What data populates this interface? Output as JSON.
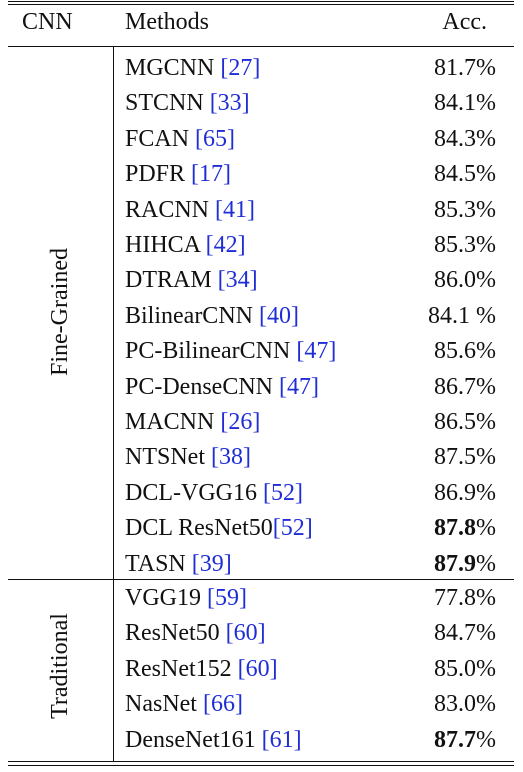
{
  "header": {
    "cnn": "CNN",
    "methods": "Methods",
    "acc": "Acc."
  },
  "groups": [
    {
      "label": "Fine-Grained",
      "rows": [
        {
          "name": "MGCNN ",
          "ref": "[27]",
          "acc": "81.7",
          "pct": "%",
          "bold": false
        },
        {
          "name": "STCNN ",
          "ref": "[33]",
          "acc": "84.1",
          "pct": "%",
          "bold": false
        },
        {
          "name": "FCAN ",
          "ref": "[65]",
          "acc": "84.3",
          "pct": "%",
          "bold": false
        },
        {
          "name": "PDFR ",
          "ref": "[17]",
          "acc": "84.5",
          "pct": "%",
          "bold": false
        },
        {
          "name": "RACNN ",
          "ref": "[41]",
          "acc": "85.3",
          "pct": "%",
          "bold": false
        },
        {
          "name": "HIHCA ",
          "ref": "[42]",
          "acc": "85.3",
          "pct": "%",
          "bold": false
        },
        {
          "name": "DTRAM ",
          "ref": "[34]",
          "acc": "86.0",
          "pct": "%",
          "bold": false
        },
        {
          "name": "BilinearCNN ",
          "ref": "[40]",
          "acc": "84.1 ",
          "pct": "%",
          "bold": false
        },
        {
          "name": "PC-BilinearCNN ",
          "ref": "[47]",
          "acc": "85.6",
          "pct": "%",
          "bold": false
        },
        {
          "name": "PC-DenseCNN ",
          "ref": "[47]",
          "acc": "86.7",
          "pct": "%",
          "bold": false
        },
        {
          "name": "MACNN ",
          "ref": "[26]",
          "acc": "86.5",
          "pct": "%",
          "bold": false
        },
        {
          "name": "NTSNet ",
          "ref": "[38]",
          "acc": "87.5",
          "pct": "%",
          "bold": false
        },
        {
          "name": "DCL-VGG16 ",
          "ref": "[52]",
          "acc": "86.9",
          "pct": "%",
          "bold": false
        },
        {
          "name": "DCL ResNet50",
          "ref": "[52]",
          "acc": "87.8",
          "pct": "%",
          "bold": true
        },
        {
          "name": "TASN ",
          "ref": "[39]",
          "acc": "87.9",
          "pct": "%",
          "bold": true
        }
      ]
    },
    {
      "label": "Traditional",
      "rows": [
        {
          "name": "VGG19 ",
          "ref": "[59]",
          "acc": "77.8",
          "pct": "%",
          "bold": false
        },
        {
          "name": "ResNet50 ",
          "ref": "[60]",
          "acc": "84.7",
          "pct": "%",
          "bold": false
        },
        {
          "name": "ResNet152 ",
          "ref": "[60]",
          "acc": "85.0",
          "pct": "%",
          "bold": false
        },
        {
          "name": "NasNet ",
          "ref": "[66]",
          "acc": "83.0",
          "pct": "%",
          "bold": false
        },
        {
          "name": "DenseNet161 ",
          "ref": "[61]",
          "acc": "87.7",
          "pct": "%",
          "bold": true
        }
      ]
    }
  ]
}
